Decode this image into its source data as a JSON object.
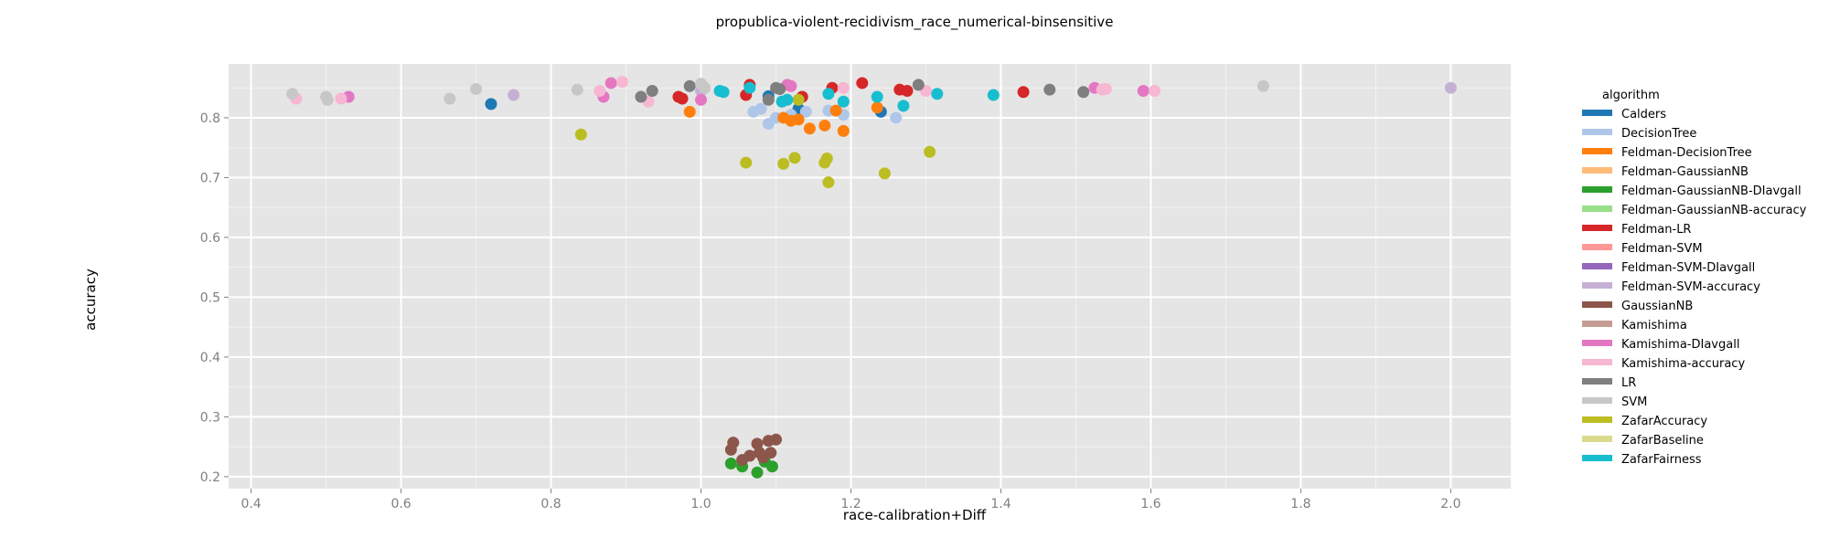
{
  "chart_data": {
    "type": "scatter",
    "title": "propublica-violent-recidivism_race_numerical-binsensitive",
    "xlabel": "race-calibration+Diff",
    "ylabel": "accuracy",
    "xlim": [
      0.37,
      2.08
    ],
    "ylim": [
      0.18,
      0.89
    ],
    "x_ticks": [
      0.4,
      0.6,
      0.8,
      1.0,
      1.2,
      1.4,
      1.6,
      1.8,
      2.0
    ],
    "x_tick_labels": [
      "0.4",
      "0.6",
      "0.8",
      "1.0",
      "1.2",
      "1.4",
      "1.6",
      "1.8",
      "2.0"
    ],
    "y_ticks": [
      0.2,
      0.3,
      0.4,
      0.5,
      0.6,
      0.7,
      0.8
    ],
    "y_tick_labels": [
      "0.2",
      "0.3",
      "0.4",
      "0.5",
      "0.6",
      "0.7",
      "0.8"
    ],
    "grid": true,
    "legend": {
      "title": "algorithm",
      "position": "right"
    },
    "series": [
      {
        "name": "Calders",
        "color": "#1f77b4",
        "x": [
          0.72,
          1.09,
          1.13,
          1.24
        ],
        "y": [
          0.823,
          0.836,
          0.815,
          0.81
        ]
      },
      {
        "name": "DecisionTree",
        "color": "#aec7e8",
        "x": [
          1.07,
          1.08,
          1.09,
          1.1,
          1.12,
          1.14,
          1.17,
          1.19,
          1.26
        ],
        "y": [
          0.81,
          0.815,
          0.79,
          0.8,
          0.805,
          0.81,
          0.812,
          0.805,
          0.8
        ]
      },
      {
        "name": "Feldman-DecisionTree",
        "color": "#ff7f0e",
        "x": [
          0.985,
          1.11,
          1.12,
          1.13,
          1.145,
          1.165,
          1.18,
          1.19,
          1.235
        ],
        "y": [
          0.81,
          0.8,
          0.795,
          0.797,
          0.782,
          0.787,
          0.812,
          0.778,
          0.817
        ]
      },
      {
        "name": "Feldman-GaussianNB",
        "color": "#ffbb78",
        "x": [],
        "y": []
      },
      {
        "name": "Feldman-GaussianNB-DIavgall",
        "color": "#2ca02c",
        "x": [
          1.04,
          1.055,
          1.075,
          1.085,
          1.095
        ],
        "y": [
          0.222,
          0.217,
          0.207,
          0.225,
          0.217
        ]
      },
      {
        "name": "Feldman-GaussianNB-accuracy",
        "color": "#98df8a",
        "x": [],
        "y": []
      },
      {
        "name": "Feldman-LR",
        "color": "#d62728",
        "x": [
          0.97,
          0.975,
          1.06,
          1.065,
          1.135,
          1.175,
          1.215,
          1.265,
          1.275,
          1.43
        ],
        "y": [
          0.835,
          0.832,
          0.838,
          0.855,
          0.835,
          0.85,
          0.858,
          0.847,
          0.845,
          0.843
        ]
      },
      {
        "name": "Feldman-SVM",
        "color": "#ff9896",
        "x": [],
        "y": []
      },
      {
        "name": "Feldman-SVM-DIavgall",
        "color": "#9467bd",
        "x": [],
        "y": []
      },
      {
        "name": "Feldman-SVM-accuracy",
        "color": "#c5b0d5",
        "x": [
          0.75,
          1.0,
          1.005,
          2.0
        ],
        "y": [
          0.838,
          0.845,
          0.85,
          0.85
        ]
      },
      {
        "name": "GaussianNB",
        "color": "#8c564b",
        "x": [
          1.04,
          1.043,
          1.055,
          1.065,
          1.075,
          1.078,
          1.083,
          1.09,
          1.093,
          1.1
        ],
        "y": [
          0.245,
          0.257,
          0.228,
          0.235,
          0.255,
          0.24,
          0.232,
          0.26,
          0.24,
          0.262
        ]
      },
      {
        "name": "Kamishima",
        "color": "#c49c94",
        "x": [],
        "y": []
      },
      {
        "name": "Kamishima-DIavgall",
        "color": "#e377c2",
        "x": [
          0.53,
          0.87,
          0.88,
          1.0,
          1.115,
          1.12,
          1.525,
          1.59
        ],
        "y": [
          0.835,
          0.835,
          0.858,
          0.83,
          0.855,
          0.853,
          0.85,
          0.845
        ]
      },
      {
        "name": "Kamishima-accuracy",
        "color": "#f7b6d2",
        "x": [
          0.46,
          0.52,
          0.865,
          0.895,
          0.93,
          1.19,
          1.3,
          1.535,
          1.54,
          1.605
        ],
        "y": [
          0.832,
          0.832,
          0.845,
          0.86,
          0.827,
          0.85,
          0.845,
          0.847,
          0.848,
          0.845
        ]
      },
      {
        "name": "LR",
        "color": "#7f7f7f",
        "x": [
          0.92,
          0.935,
          0.985,
          1.09,
          1.1,
          1.105,
          1.29,
          1.465,
          1.51
        ],
        "y": [
          0.835,
          0.845,
          0.853,
          0.83,
          0.85,
          0.848,
          0.855,
          0.847,
          0.843
        ]
      },
      {
        "name": "SVM",
        "color": "#c7c7c7",
        "x": [
          0.455,
          0.5,
          0.502,
          0.665,
          0.7,
          0.835,
          1.0,
          1.005,
          1.75
        ],
        "y": [
          0.84,
          0.835,
          0.83,
          0.832,
          0.848,
          0.847,
          0.857,
          0.85,
          0.853
        ]
      },
      {
        "name": "ZafarAccuracy",
        "color": "#bcbd22",
        "x": [
          0.84,
          1.06,
          1.11,
          1.125,
          1.13,
          1.165,
          1.168,
          1.17,
          1.245,
          1.305
        ],
        "y": [
          0.772,
          0.725,
          0.723,
          0.733,
          0.83,
          0.725,
          0.732,
          0.692,
          0.707,
          0.743
        ]
      },
      {
        "name": "ZafarBaseline",
        "color": "#dbdb8d",
        "x": [],
        "y": []
      },
      {
        "name": "ZafarFairness",
        "color": "#17becf",
        "x": [
          1.025,
          1.03,
          1.065,
          1.108,
          1.115,
          1.17,
          1.19,
          1.235,
          1.27,
          1.315,
          1.39
        ],
        "y": [
          0.845,
          0.843,
          0.85,
          0.827,
          0.83,
          0.84,
          0.827,
          0.835,
          0.82,
          0.84,
          0.838
        ]
      }
    ]
  }
}
